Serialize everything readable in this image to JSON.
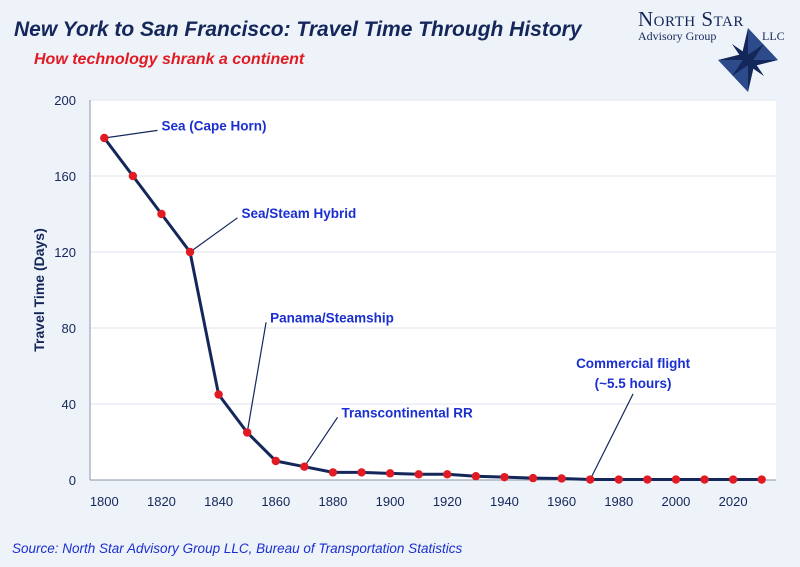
{
  "header": {
    "title": "New York to San Francisco: Travel Time Through History",
    "subtitle": "How technology shrank a continent"
  },
  "logo": {
    "line1": "North Star",
    "line2": "Advisory Group",
    "line3": "LLC",
    "icon": "compass-star-icon"
  },
  "footer": {
    "source": "Source: North Star Advisory Group LLC, Bureau of Transportation Statistics"
  },
  "colors": {
    "line": "#14275a",
    "point": "#e01b24",
    "annotation": "#1a2fd0",
    "text": "#14275a",
    "grid": "#dde4ec"
  },
  "chart_data": {
    "type": "line",
    "ylabel": "Travel Time (Days)",
    "xlabel": "",
    "xlim": [
      1795,
      2035
    ],
    "ylim": [
      0,
      200
    ],
    "x_ticks": [
      1800,
      1820,
      1840,
      1860,
      1880,
      1900,
      1920,
      1940,
      1960,
      1980,
      2000,
      2020
    ],
    "y_ticks": [
      0,
      40,
      80,
      120,
      160,
      200
    ],
    "grid": "horizontal",
    "series": [
      {
        "x": [
          1800,
          1810,
          1820,
          1830,
          1840,
          1850,
          1860,
          1870,
          1880,
          1890,
          1900,
          1910,
          1920,
          1930,
          1940,
          1950,
          1960,
          1970,
          1980,
          1990,
          2000,
          2010,
          2020,
          2030
        ],
        "y": [
          180,
          160,
          140,
          120,
          45,
          25,
          10,
          7,
          4,
          4,
          3.5,
          3,
          3,
          2,
          1.5,
          1,
          0.8,
          0.25,
          0.25,
          0.25,
          0.25,
          0.25,
          0.25,
          0.25
        ]
      }
    ],
    "annotations": [
      {
        "lines": [
          "Sea (Cape Horn)"
        ],
        "x": 1800,
        "y": 180,
        "text_x": 1820,
        "text_y": 184
      },
      {
        "lines": [
          "Sea/Steam Hybrid"
        ],
        "x": 1830,
        "y": 120,
        "text_x": 1848,
        "text_y": 138
      },
      {
        "lines": [
          "Panama/Steamship"
        ],
        "x": 1850,
        "y": 25,
        "text_x": 1858,
        "text_y": 83
      },
      {
        "lines": [
          "Transcontinental RR"
        ],
        "x": 1870,
        "y": 7,
        "text_x": 1883,
        "text_y": 33
      },
      {
        "lines": [
          "Commercial flight",
          "(~5.5 hours)"
        ],
        "x": 1970,
        "y": 0.25,
        "text_x": 1985,
        "text_y": 59
      }
    ]
  }
}
